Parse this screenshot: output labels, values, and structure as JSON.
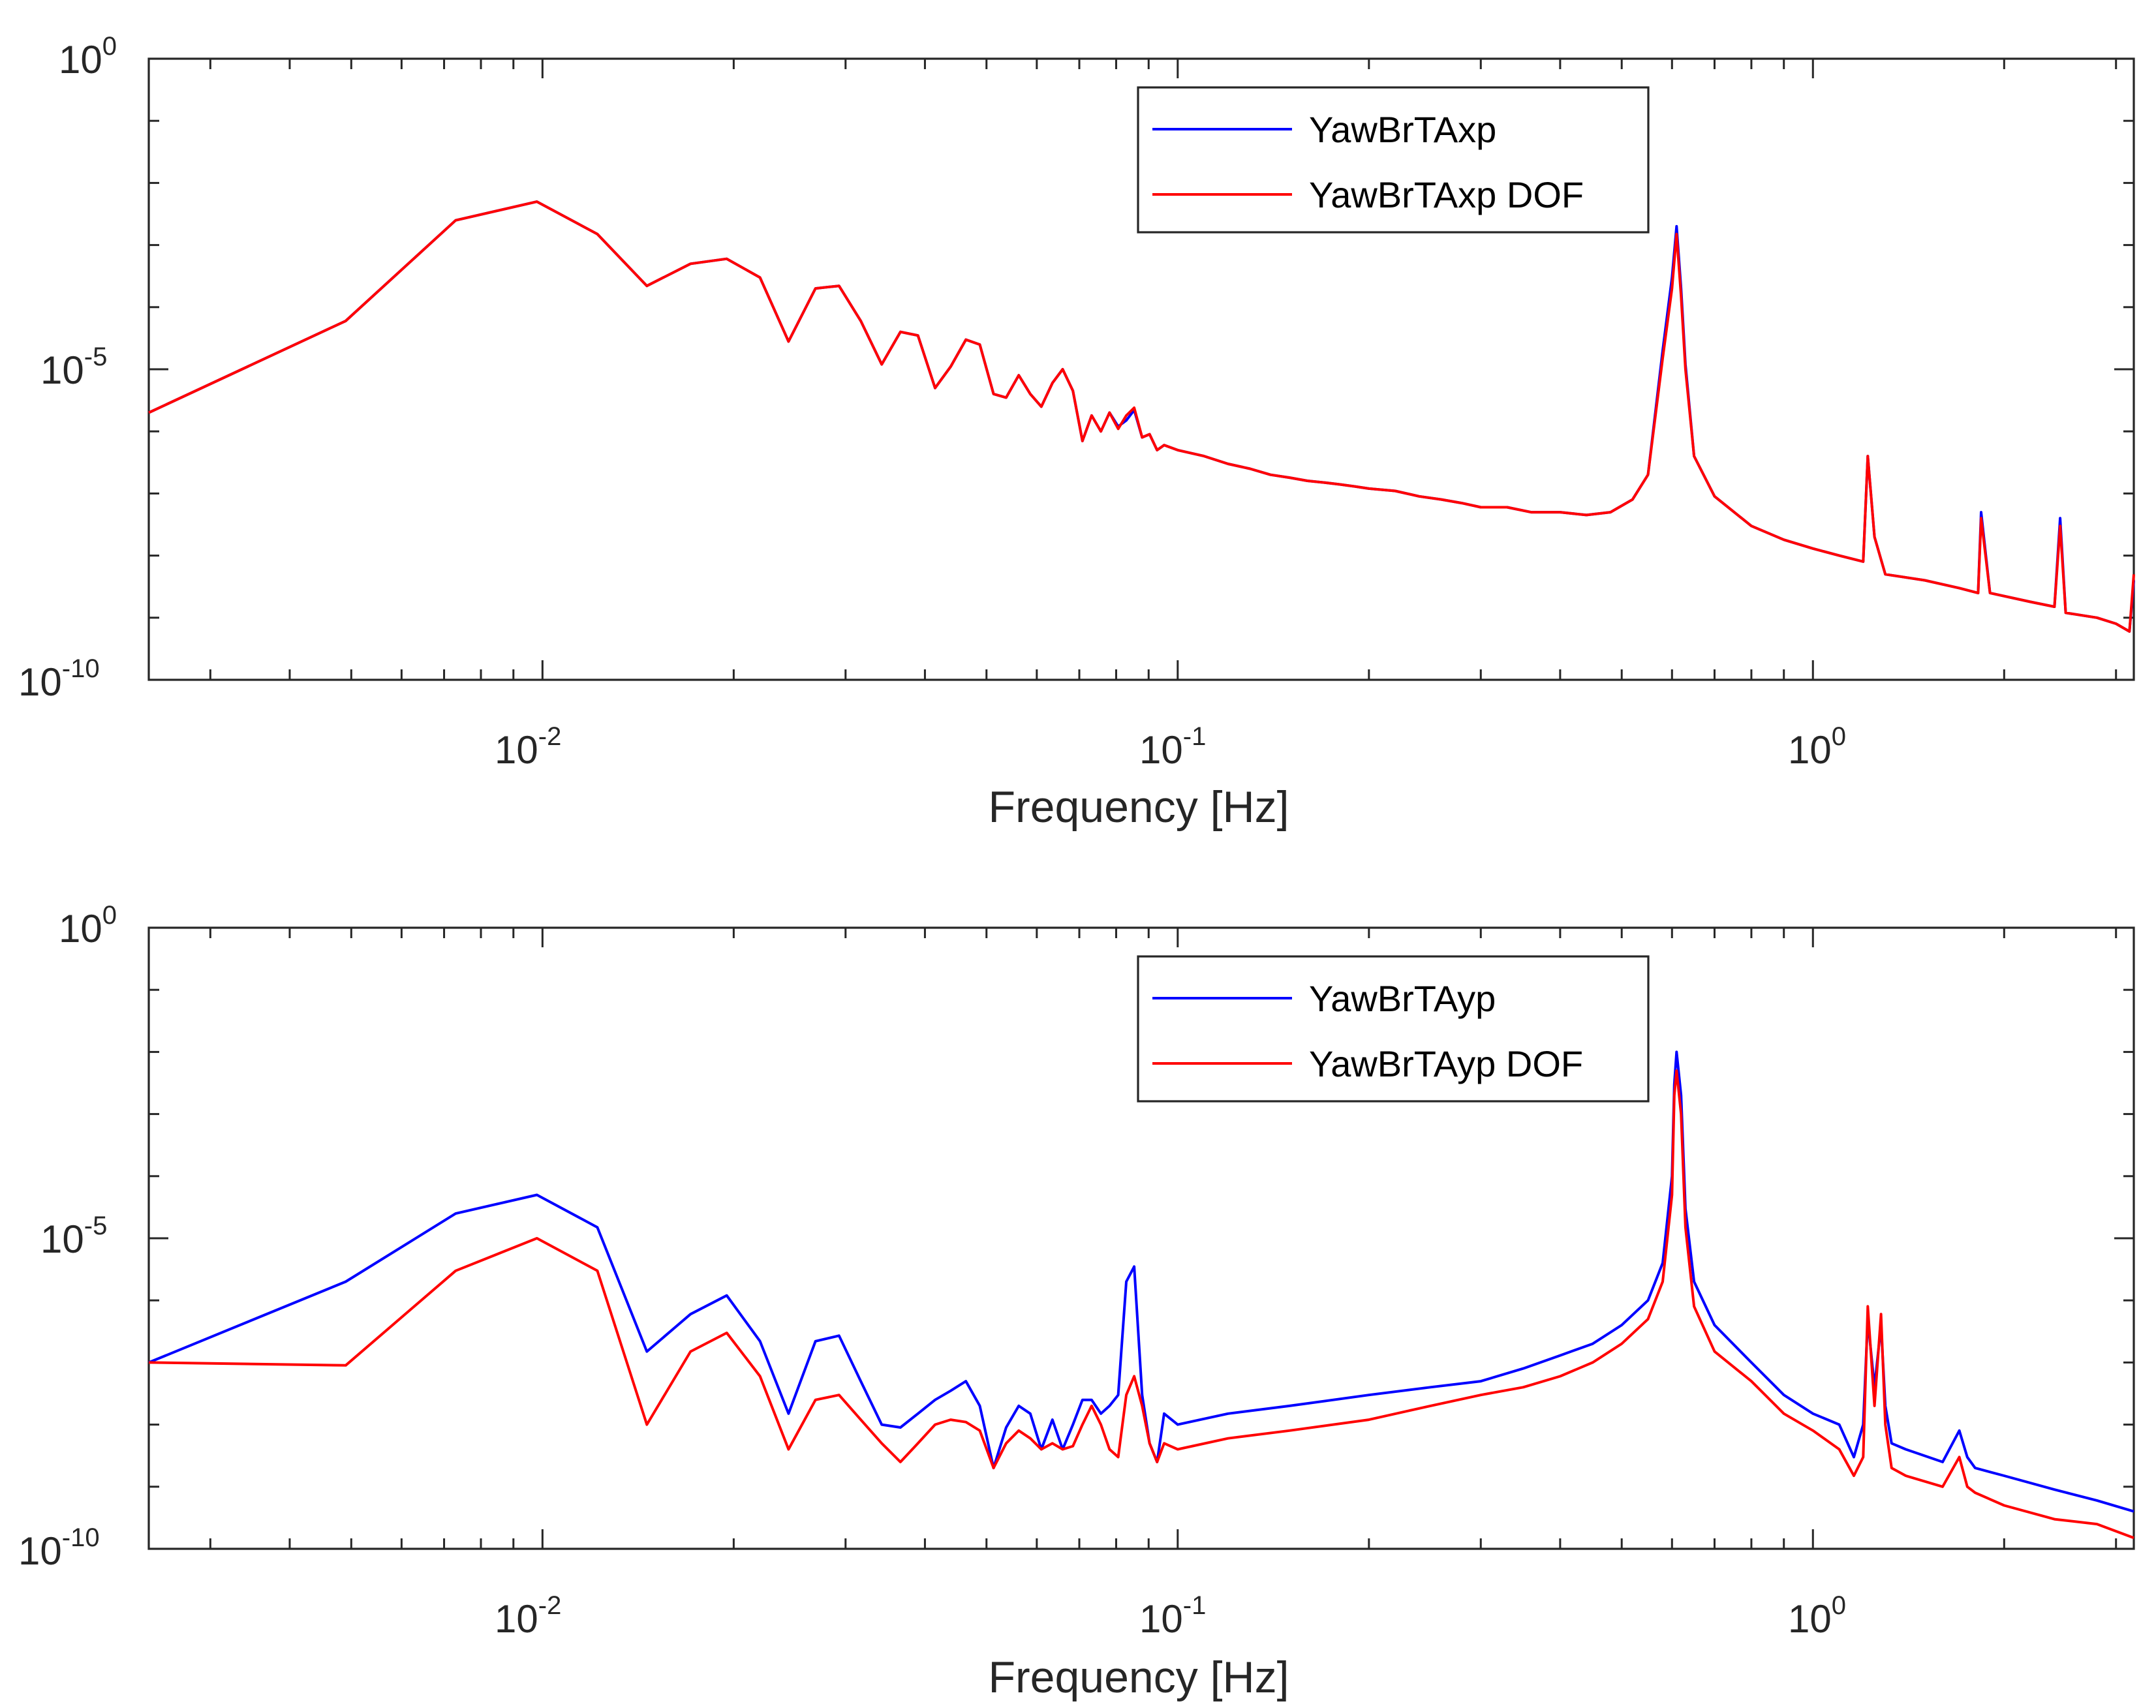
{
  "colors": {
    "series1": "#0000ff",
    "series2": "#ff0000",
    "axis": "#262626"
  },
  "chart_data": [
    {
      "type": "line",
      "xscale": "log",
      "yscale": "log",
      "xlim": [
        0.0024,
        3.2
      ],
      "ylim": [
        1e-10,
        1
      ],
      "xticks": [
        {
          "base": "10",
          "exp": "-2"
        },
        {
          "base": "10",
          "exp": "-1"
        },
        {
          "base": "10",
          "exp": "0"
        }
      ],
      "yticks": [
        {
          "base": "10",
          "exp": "0"
        },
        {
          "base": "10",
          "exp": "-5"
        },
        {
          "base": "10",
          "exp": "-10"
        }
      ],
      "xlabel": "Frequency [Hz]",
      "ylabel": "",
      "legend_position": "top-right",
      "series": [
        {
          "name": "YawBrTAxp",
          "color": "#0000ff",
          "x": [
            0.0024,
            0.0049,
            0.0073,
            0.0098,
            0.0122,
            0.0146,
            0.0171,
            0.0195,
            0.022,
            0.0244,
            0.0269,
            0.0293,
            0.0317,
            0.0342,
            0.0366,
            0.039,
            0.0415,
            0.0439,
            0.0464,
            0.0488,
            0.0513,
            0.0537,
            0.0562,
            0.0586,
            0.061,
            0.0635,
            0.0659,
            0.0684,
            0.0708,
            0.0732,
            0.0757,
            0.0781,
            0.0806,
            0.083,
            0.0854,
            0.0879,
            0.0903,
            0.0928,
            0.0952,
            0.1,
            0.11,
            0.12,
            0.13,
            0.14,
            0.15,
            0.16,
            0.17,
            0.18,
            0.19,
            0.2,
            0.22,
            0.24,
            0.26,
            0.28,
            0.3,
            0.33,
            0.36,
            0.4,
            0.44,
            0.48,
            0.52,
            0.55,
            0.58,
            0.6,
            0.61,
            0.62,
            0.63,
            0.65,
            0.7,
            0.8,
            0.9,
            1.0,
            1.1,
            1.2,
            1.22,
            1.25,
            1.3,
            1.5,
            1.7,
            1.82,
            1.84,
            1.9,
            2.2,
            2.4,
            2.45,
            2.5,
            2.8,
            3.0,
            3.15,
            3.2
          ],
          "y": [
            2e-06,
            6e-05,
            0.0025,
            0.005,
            0.0015,
            0.00022,
            0.0005,
            0.0006,
            0.0003,
            2.8e-05,
            0.0002,
            0.00022,
            6e-05,
            1.2e-05,
            4e-05,
            3.5e-05,
            5e-06,
            1.1e-05,
            3e-05,
            2.5e-05,
            4e-06,
            3.5e-06,
            8e-06,
            4e-06,
            2.5e-06,
            6e-06,
            1e-05,
            4.5e-06,
            7e-07,
            1.8e-06,
            1e-06,
            2e-06,
            1.2e-06,
            1.5e-06,
            2.2e-06,
            8e-07,
            9e-07,
            5e-07,
            6e-07,
            5e-07,
            4e-07,
            3e-07,
            2.5e-07,
            2e-07,
            1.8e-07,
            1.6e-07,
            1.5e-07,
            1.4e-07,
            1.3e-07,
            1.2e-07,
            1.1e-07,
            9e-08,
            8e-08,
            7e-08,
            6e-08,
            6e-08,
            5e-08,
            5e-08,
            4.5e-08,
            5e-08,
            8e-08,
            2e-07,
            2e-05,
            0.0003,
            0.002,
            0.0002,
            1.2e-05,
            4e-07,
            9e-08,
            3e-08,
            1.8e-08,
            1.3e-08,
            1e-08,
            8e-09,
            4e-07,
            2e-08,
            5e-09,
            4e-09,
            3e-09,
            2.5e-09,
            5e-08,
            2.5e-09,
            1.8e-09,
            1.5e-09,
            4e-08,
            1.2e-09,
            1e-09,
            8e-10,
            6e-10,
            4e-09
          ]
        },
        {
          "name": "YawBrTAxp DOF",
          "color": "#ff0000",
          "x": [
            0.0024,
            0.0049,
            0.0073,
            0.0098,
            0.0122,
            0.0146,
            0.0171,
            0.0195,
            0.022,
            0.0244,
            0.0269,
            0.0293,
            0.0317,
            0.0342,
            0.0366,
            0.039,
            0.0415,
            0.0439,
            0.0464,
            0.0488,
            0.0513,
            0.0537,
            0.0562,
            0.0586,
            0.061,
            0.0635,
            0.0659,
            0.0684,
            0.0708,
            0.0732,
            0.0757,
            0.0781,
            0.0806,
            0.083,
            0.0854,
            0.0879,
            0.0903,
            0.0928,
            0.0952,
            0.1,
            0.11,
            0.12,
            0.13,
            0.14,
            0.15,
            0.16,
            0.17,
            0.18,
            0.19,
            0.2,
            0.22,
            0.24,
            0.26,
            0.28,
            0.3,
            0.33,
            0.36,
            0.4,
            0.44,
            0.48,
            0.52,
            0.55,
            0.58,
            0.6,
            0.61,
            0.62,
            0.63,
            0.65,
            0.7,
            0.8,
            0.9,
            1.0,
            1.1,
            1.2,
            1.22,
            1.25,
            1.3,
            1.5,
            1.7,
            1.82,
            1.84,
            1.9,
            2.2,
            2.4,
            2.45,
            2.5,
            2.8,
            3.0,
            3.15,
            3.2
          ],
          "y": [
            2e-06,
            6e-05,
            0.0025,
            0.005,
            0.0015,
            0.00022,
            0.0005,
            0.0006,
            0.0003,
            2.8e-05,
            0.0002,
            0.00022,
            6e-05,
            1.2e-05,
            4e-05,
            3.5e-05,
            5e-06,
            1.1e-05,
            3e-05,
            2.5e-05,
            4e-06,
            3.5e-06,
            8e-06,
            4e-06,
            2.5e-06,
            6e-06,
            1e-05,
            4.5e-06,
            7e-07,
            1.8e-06,
            1e-06,
            2e-06,
            1.1e-06,
            1.8e-06,
            2.4e-06,
            8e-07,
            9e-07,
            5e-07,
            6e-07,
            5e-07,
            4e-07,
            3e-07,
            2.5e-07,
            2e-07,
            1.8e-07,
            1.6e-07,
            1.5e-07,
            1.4e-07,
            1.3e-07,
            1.2e-07,
            1.1e-07,
            9e-08,
            8e-08,
            7e-08,
            6e-08,
            6e-08,
            5e-08,
            5e-08,
            4.5e-08,
            5e-08,
            8e-08,
            2e-07,
            1.5e-05,
            0.0002,
            0.0015,
            0.00015,
            1e-05,
            4e-07,
            9e-08,
            3e-08,
            1.8e-08,
            1.3e-08,
            1e-08,
            8e-09,
            4e-07,
            2e-08,
            5e-09,
            4e-09,
            3e-09,
            2.5e-09,
            4e-08,
            2.5e-09,
            1.8e-09,
            1.5e-09,
            3e-08,
            1.2e-09,
            1e-09,
            8e-10,
            6e-10,
            5e-09
          ]
        }
      ]
    },
    {
      "type": "line",
      "xscale": "log",
      "yscale": "log",
      "xlim": [
        0.0024,
        3.2
      ],
      "ylim": [
        1e-10,
        1
      ],
      "xticks": [
        {
          "base": "10",
          "exp": "-2"
        },
        {
          "base": "10",
          "exp": "-1"
        },
        {
          "base": "10",
          "exp": "0"
        }
      ],
      "yticks": [
        {
          "base": "10",
          "exp": "0"
        },
        {
          "base": "10",
          "exp": "-5"
        },
        {
          "base": "10",
          "exp": "-10"
        }
      ],
      "xlabel": "Frequency [Hz]",
      "ylabel": "",
      "legend_position": "top-right",
      "series": [
        {
          "name": "YawBrTAyp",
          "color": "#0000ff",
          "x": [
            0.0024,
            0.0049,
            0.0073,
            0.0098,
            0.0122,
            0.0146,
            0.0171,
            0.0195,
            0.022,
            0.0244,
            0.0269,
            0.0293,
            0.0317,
            0.0342,
            0.0366,
            0.039,
            0.0415,
            0.0439,
            0.0464,
            0.0488,
            0.0513,
            0.0537,
            0.0562,
            0.0586,
            0.061,
            0.0635,
            0.0659,
            0.0684,
            0.0708,
            0.0732,
            0.0757,
            0.0781,
            0.0806,
            0.083,
            0.0854,
            0.0879,
            0.0903,
            0.0928,
            0.0952,
            0.1,
            0.12,
            0.15,
            0.2,
            0.25,
            0.3,
            0.35,
            0.4,
            0.45,
            0.5,
            0.55,
            0.58,
            0.6,
            0.605,
            0.61,
            0.62,
            0.63,
            0.65,
            0.7,
            0.8,
            0.9,
            1.0,
            1.1,
            1.16,
            1.2,
            1.22,
            1.25,
            1.28,
            1.3,
            1.33,
            1.4,
            1.6,
            1.7,
            1.75,
            1.8,
            2.0,
            2.4,
            2.8,
            3.2
          ],
          "y": [
            1e-07,
            2e-06,
            2.5e-05,
            5e-05,
            1.5e-05,
            1.5e-07,
            6e-07,
            1.2e-06,
            2.2e-07,
            1.5e-08,
            2.2e-07,
            2.7e-07,
            5e-08,
            1e-08,
            9e-09,
            1.5e-08,
            2.5e-08,
            3.5e-08,
            5e-08,
            2e-08,
            2e-09,
            9e-09,
            2e-08,
            1.5e-08,
            4e-09,
            1.2e-08,
            4e-09,
            1e-08,
            2.5e-08,
            2.5e-08,
            1.5e-08,
            2e-08,
            3e-08,
            2e-06,
            3.5e-06,
            3e-08,
            5e-09,
            2.5e-09,
            1.5e-08,
            1e-08,
            1.5e-08,
            2e-08,
            3e-08,
            4e-08,
            5e-08,
            8e-08,
            1.3e-07,
            2e-07,
            4e-07,
            1e-06,
            4e-06,
            0.0001,
            0.003,
            0.01,
            0.002,
            3e-05,
            2e-06,
            4e-07,
            1e-07,
            3e-08,
            1.5e-08,
            1e-08,
            3e-09,
            1e-08,
            5e-07,
            4e-08,
            4e-07,
            2e-08,
            5e-09,
            4e-09,
            2.5e-09,
            8e-09,
            3e-09,
            2e-09,
            1.5e-09,
            9e-10,
            6e-10,
            4e-10
          ]
        },
        {
          "name": "YawBrTAyp DOF",
          "color": "#ff0000",
          "x": [
            0.0024,
            0.0049,
            0.0073,
            0.0098,
            0.0122,
            0.0146,
            0.0171,
            0.0195,
            0.022,
            0.0244,
            0.0269,
            0.0293,
            0.0317,
            0.0342,
            0.0366,
            0.039,
            0.0415,
            0.0439,
            0.0464,
            0.0488,
            0.0513,
            0.0537,
            0.0562,
            0.0586,
            0.061,
            0.0635,
            0.0659,
            0.0684,
            0.0708,
            0.0732,
            0.0757,
            0.0781,
            0.0806,
            0.083,
            0.0854,
            0.0879,
            0.0903,
            0.0928,
            0.0952,
            0.1,
            0.12,
            0.15,
            0.2,
            0.25,
            0.3,
            0.35,
            0.4,
            0.45,
            0.5,
            0.55,
            0.58,
            0.6,
            0.605,
            0.61,
            0.62,
            0.63,
            0.65,
            0.7,
            0.8,
            0.9,
            1.0,
            1.1,
            1.16,
            1.2,
            1.22,
            1.25,
            1.28,
            1.3,
            1.33,
            1.4,
            1.6,
            1.7,
            1.75,
            1.8,
            2.0,
            2.4,
            2.8,
            3.2
          ],
          "y": [
            1e-07,
            9e-08,
            3e-06,
            1e-05,
            3e-06,
            1e-08,
            1.5e-07,
            3e-07,
            6e-08,
            4e-09,
            2.5e-08,
            3e-08,
            1.2e-08,
            5e-09,
            2.5e-09,
            5e-09,
            1e-08,
            1.2e-08,
            1.1e-08,
            8e-09,
            2e-09,
            5e-09,
            8e-09,
            6e-09,
            4e-09,
            5e-09,
            4e-09,
            4.5e-09,
            1e-08,
            2e-08,
            1e-08,
            4e-09,
            3e-09,
            3e-08,
            6e-08,
            2e-08,
            5e-09,
            2.5e-09,
            5e-09,
            4e-09,
            6e-09,
            8e-09,
            1.2e-08,
            2e-08,
            3e-08,
            4e-08,
            6e-08,
            1e-07,
            2e-07,
            5e-07,
            2e-06,
            5e-05,
            0.002,
            0.005,
            0.001,
            1.5e-05,
            8e-07,
            1.5e-07,
            5e-08,
            1.5e-08,
            8e-09,
            4e-09,
            1.5e-09,
            3e-09,
            8e-07,
            2e-08,
            6e-07,
            1e-08,
            2e-09,
            1.5e-09,
            1e-09,
            3e-09,
            1e-09,
            8e-10,
            5e-10,
            3e-10,
            2.5e-10,
            1.5e-10
          ]
        }
      ]
    }
  ]
}
